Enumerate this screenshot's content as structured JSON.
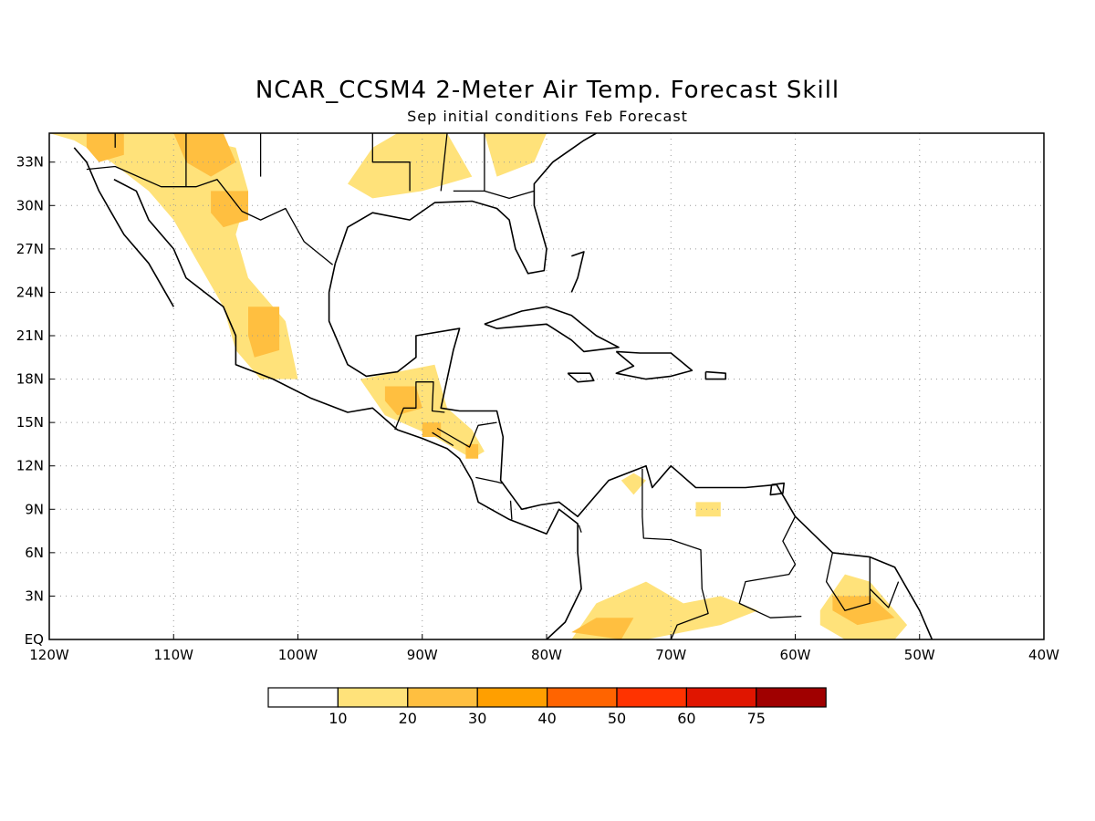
{
  "title": "NCAR_CCSM4 2-Meter Air Temp. Forecast Skill",
  "subtitle": "Sep initial conditions  Feb Forecast",
  "map": {
    "lon_range": [
      -120,
      -40
    ],
    "lat_range": [
      0,
      35
    ],
    "lon_ticks": [
      {
        "value": -120,
        "label": "120W"
      },
      {
        "value": -110,
        "label": "110W"
      },
      {
        "value": -100,
        "label": "100W"
      },
      {
        "value": -90,
        "label": "90W"
      },
      {
        "value": -80,
        "label": "80W"
      },
      {
        "value": -70,
        "label": "70W"
      },
      {
        "value": -60,
        "label": "60W"
      },
      {
        "value": -50,
        "label": "50W"
      },
      {
        "value": -40,
        "label": "40W"
      }
    ],
    "lat_ticks": [
      {
        "value": 0,
        "label": "EQ"
      },
      {
        "value": 3,
        "label": "3N"
      },
      {
        "value": 6,
        "label": "6N"
      },
      {
        "value": 9,
        "label": "9N"
      },
      {
        "value": 12,
        "label": "12N"
      },
      {
        "value": 15,
        "label": "15N"
      },
      {
        "value": 18,
        "label": "18N"
      },
      {
        "value": 21,
        "label": "21N"
      },
      {
        "value": 24,
        "label": "24N"
      },
      {
        "value": 27,
        "label": "27N"
      },
      {
        "value": 30,
        "label": "30N"
      },
      {
        "value": 33,
        "label": "33N"
      }
    ],
    "grid": true
  },
  "colorbar": {
    "colors": [
      "#ffffff",
      "#ffe27a",
      "#ffbf40",
      "#ff9f00",
      "#ff6400",
      "#ff3300",
      "#e01500",
      "#a00000"
    ],
    "labels": [
      "10",
      "20",
      "30",
      "40",
      "50",
      "60",
      "75"
    ]
  },
  "skill_regions": [
    {
      "level": 1,
      "pts": [
        [
          -120,
          35
        ],
        [
          -116,
          35
        ],
        [
          -110,
          35
        ],
        [
          -105,
          34
        ],
        [
          -104,
          31
        ],
        [
          -105,
          28
        ],
        [
          -104,
          25
        ],
        [
          -101,
          22
        ],
        [
          -100,
          18
        ],
        [
          -103,
          18
        ],
        [
          -105,
          20
        ],
        [
          -106,
          23
        ],
        [
          -108,
          26
        ],
        [
          -110,
          29
        ],
        [
          -112,
          31
        ],
        [
          -115,
          33
        ],
        [
          -118,
          34.5
        ]
      ]
    },
    {
      "level": 2,
      "pts": [
        [
          -117,
          35
        ],
        [
          -114,
          35
        ],
        [
          -114,
          33.5
        ],
        [
          -116,
          33
        ],
        [
          -117,
          34
        ]
      ]
    },
    {
      "level": 2,
      "pts": [
        [
          -110,
          35
        ],
        [
          -106,
          35
        ],
        [
          -105,
          33
        ],
        [
          -107,
          32
        ],
        [
          -109,
          33
        ]
      ]
    },
    {
      "level": 2,
      "pts": [
        [
          -107,
          31
        ],
        [
          -104,
          31
        ],
        [
          -104,
          29
        ],
        [
          -106,
          28.5
        ],
        [
          -107,
          29.5
        ]
      ]
    },
    {
      "level": 2,
      "pts": [
        [
          -104,
          23
        ],
        [
          -101.5,
          23
        ],
        [
          -101.5,
          20
        ],
        [
          -103.5,
          19.5
        ],
        [
          -104,
          21
        ]
      ]
    },
    {
      "level": 1,
      "pts": [
        [
          -94,
          34
        ],
        [
          -92,
          35
        ],
        [
          -88,
          35
        ],
        [
          -86,
          32
        ],
        [
          -90,
          31
        ],
        [
          -94,
          30.5
        ],
        [
          -96,
          31.5
        ]
      ]
    },
    {
      "level": 1,
      "pts": [
        [
          -85,
          35
        ],
        [
          -80,
          35
        ],
        [
          -81,
          33
        ],
        [
          -84,
          32
        ]
      ]
    },
    {
      "level": 1,
      "pts": [
        [
          -95,
          18
        ],
        [
          -89,
          19
        ],
        [
          -88,
          16
        ],
        [
          -86,
          14.5
        ],
        [
          -85,
          13
        ],
        [
          -86,
          12.5
        ],
        [
          -89,
          14
        ],
        [
          -93,
          15.5
        ]
      ]
    },
    {
      "level": 2,
      "pts": [
        [
          -93,
          17.5
        ],
        [
          -90.5,
          17.5
        ],
        [
          -90,
          16
        ],
        [
          -92,
          15.5
        ],
        [
          -93,
          16.5
        ]
      ]
    },
    {
      "level": 2,
      "pts": [
        [
          -90,
          15
        ],
        [
          -88.5,
          15
        ],
        [
          -88.5,
          14
        ],
        [
          -90,
          14
        ]
      ]
    },
    {
      "level": 2,
      "pts": [
        [
          -86.5,
          13.5
        ],
        [
          -85.5,
          13.5
        ],
        [
          -85.5,
          12.5
        ],
        [
          -86.5,
          12.5
        ]
      ]
    },
    {
      "level": 1,
      "pts": [
        [
          -78,
          0
        ],
        [
          -76,
          2.5
        ],
        [
          -72,
          4
        ],
        [
          -69,
          2.5
        ],
        [
          -66,
          3
        ],
        [
          -63,
          2
        ],
        [
          -66,
          1
        ],
        [
          -72,
          0
        ]
      ]
    },
    {
      "level": 2,
      "pts": [
        [
          -78,
          0.5
        ],
        [
          -76,
          1.5
        ],
        [
          -73,
          1.5
        ],
        [
          -74,
          0
        ]
      ]
    },
    {
      "level": 1,
      "pts": [
        [
          -68,
          9.5
        ],
        [
          -66,
          9.5
        ],
        [
          -66,
          8.5
        ],
        [
          -68,
          8.5
        ]
      ]
    },
    {
      "level": 1,
      "pts": [
        [
          -74,
          11
        ],
        [
          -73,
          11.5
        ],
        [
          -72,
          11
        ],
        [
          -73,
          10
        ]
      ]
    },
    {
      "level": 1,
      "pts": [
        [
          -58,
          2
        ],
        [
          -56,
          4.5
        ],
        [
          -54,
          4
        ],
        [
          -52,
          2
        ],
        [
          -51,
          1
        ],
        [
          -52,
          0
        ],
        [
          -56,
          0
        ],
        [
          -58,
          1
        ]
      ]
    },
    {
      "level": 2,
      "pts": [
        [
          -57,
          3
        ],
        [
          -54,
          3
        ],
        [
          -52,
          1.5
        ],
        [
          -55,
          1
        ],
        [
          -57,
          2
        ]
      ]
    }
  ],
  "coastlines": [
    [
      [
        -118,
        34
      ],
      [
        -117,
        33
      ],
      [
        -116,
        31
      ],
      [
        -115,
        29.5
      ],
      [
        -114,
        28
      ],
      [
        -112,
        26
      ],
      [
        -110,
        23
      ]
    ],
    [
      [
        -114.8,
        31.8
      ],
      [
        -113,
        31
      ],
      [
        -112,
        29
      ],
      [
        -110,
        27
      ],
      [
        -109,
        25
      ],
      [
        -106,
        23
      ],
      [
        -105,
        21
      ],
      [
        -105,
        19
      ],
      [
        -102,
        18
      ],
      [
        -99,
        16.7
      ],
      [
        -96,
        15.7
      ],
      [
        -94,
        16
      ],
      [
        -92,
        14.5
      ],
      [
        -90,
        13.9
      ],
      [
        -88,
        13.2
      ],
      [
        -87,
        12.5
      ],
      [
        -86,
        11
      ],
      [
        -85.5,
        9.5
      ],
      [
        -83,
        8.3
      ],
      [
        -80,
        7.3
      ],
      [
        -79,
        9
      ],
      [
        -77.5,
        8
      ],
      [
        -77.5,
        6
      ],
      [
        -77.2,
        3.5
      ],
      [
        -78.5,
        1.2
      ],
      [
        -80,
        0
      ]
    ],
    [
      [
        -97,
        26
      ],
      [
        -97.5,
        24
      ],
      [
        -97.5,
        22
      ],
      [
        -96,
        19
      ],
      [
        -94.5,
        18.2
      ],
      [
        -92,
        18.5
      ],
      [
        -90.5,
        19.5
      ],
      [
        -90.5,
        21
      ],
      [
        -87,
        21.5
      ],
      [
        -87.5,
        20
      ],
      [
        -88,
        18
      ],
      [
        -88.5,
        16
      ],
      [
        -87,
        15.8
      ],
      [
        -84,
        15.8
      ],
      [
        -83.5,
        14
      ],
      [
        -83.7,
        11
      ],
      [
        -82,
        9
      ],
      [
        -80.5,
        9.3
      ],
      [
        -79,
        9.5
      ],
      [
        -77.5,
        8.5
      ],
      [
        -76,
        10
      ],
      [
        -75,
        11
      ],
      [
        -72,
        12
      ],
      [
        -71.5,
        10.5
      ],
      [
        -70,
        12
      ],
      [
        -68,
        10.5
      ],
      [
        -64,
        10.5
      ],
      [
        -61.5,
        10.7
      ],
      [
        -60,
        8.5
      ],
      [
        -57,
        6
      ],
      [
        -54,
        5.7
      ],
      [
        -52,
        5
      ],
      [
        -50,
        2
      ],
      [
        -49,
        0
      ]
    ],
    [
      [
        -97,
        26
      ],
      [
        -96,
        28.5
      ],
      [
        -94,
        29.5
      ],
      [
        -91,
        29
      ],
      [
        -89,
        30.2
      ],
      [
        -86,
        30.3
      ],
      [
        -84,
        29.8
      ],
      [
        -83,
        29
      ],
      [
        -82.5,
        27
      ],
      [
        -81.5,
        25.3
      ],
      [
        -80.2,
        25.5
      ],
      [
        -80,
        27
      ],
      [
        -81,
        30
      ],
      [
        -81,
        31.5
      ],
      [
        -79.5,
        33
      ],
      [
        -77,
        34.5
      ],
      [
        -76,
        35
      ]
    ],
    [
      [
        -85,
        21.8
      ],
      [
        -82,
        22.7
      ],
      [
        -80,
        23
      ],
      [
        -78,
        22.4
      ],
      [
        -76,
        21
      ],
      [
        -74.2,
        20.2
      ],
      [
        -77,
        19.9
      ],
      [
        -78,
        20.7
      ],
      [
        -80,
        21.8
      ],
      [
        -84,
        21.5
      ],
      [
        -85,
        21.8
      ]
    ],
    [
      [
        -74.4,
        19.9
      ],
      [
        -72.5,
        19.8
      ],
      [
        -70,
        19.8
      ],
      [
        -68.3,
        18.6
      ],
      [
        -70,
        18.2
      ],
      [
        -72,
        18
      ],
      [
        -74.4,
        18.4
      ],
      [
        -73,
        18.9
      ],
      [
        -74.4,
        19.9
      ]
    ],
    [
      [
        -78.3,
        18.4
      ],
      [
        -76.5,
        18.4
      ],
      [
        -76.2,
        17.9
      ],
      [
        -77.5,
        17.8
      ],
      [
        -78.3,
        18.4
      ]
    ],
    [
      [
        -67.2,
        18.5
      ],
      [
        -65.6,
        18.4
      ],
      [
        -65.6,
        18
      ],
      [
        -67.2,
        18
      ],
      [
        -67.2,
        18.5
      ]
    ],
    [
      [
        -78,
        26.5
      ],
      [
        -77,
        26.8
      ],
      [
        -77.5,
        25
      ],
      [
        -78,
        24
      ]
    ],
    [
      [
        -61.9,
        10.7
      ],
      [
        -60.9,
        10.8
      ],
      [
        -61,
        10.1
      ],
      [
        -62,
        10
      ],
      [
        -61.9,
        10.7
      ]
    ]
  ],
  "borders": [
    [
      [
        -117,
        32.5
      ],
      [
        -114.7,
        32.7
      ],
      [
        -111,
        31.3
      ],
      [
        -108.2,
        31.3
      ],
      [
        -106.5,
        31.8
      ],
      [
        -104.5,
        29.6
      ],
      [
        -103,
        29
      ],
      [
        -101,
        29.8
      ],
      [
        -99.5,
        27.5
      ],
      [
        -97.2,
        25.9
      ]
    ],
    [
      [
        -92.2,
        14.5
      ],
      [
        -91.5,
        16
      ],
      [
        -90.5,
        16
      ],
      [
        -90.5,
        17.8
      ],
      [
        -89.1,
        17.8
      ],
      [
        -89.2,
        15.8
      ],
      [
        -88.2,
        15.7
      ]
    ],
    [
      [
        -89.2,
        14.3
      ],
      [
        -87.5,
        13.4
      ]
    ],
    [
      [
        -88.8,
        14.6
      ],
      [
        -86.2,
        13.3
      ],
      [
        -85.5,
        14.8
      ],
      [
        -84,
        15
      ]
    ],
    [
      [
        -85.7,
        11.2
      ],
      [
        -84,
        10.9
      ],
      [
        -83.6,
        10.8
      ]
    ],
    [
      [
        -82.9,
        9.6
      ],
      [
        -82.8,
        8.3
      ]
    ],
    [
      [
        -77.4,
        7.9
      ],
      [
        -77.2,
        7.4
      ]
    ],
    [
      [
        -72.3,
        11.8
      ],
      [
        -72.3,
        8.5
      ],
      [
        -72.2,
        7
      ],
      [
        -70,
        6.9
      ],
      [
        -67.6,
        6.2
      ],
      [
        -67.5,
        3.5
      ],
      [
        -67,
        1.8
      ],
      [
        -69.5,
        1
      ],
      [
        -70,
        0
      ]
    ],
    [
      [
        -60,
        8.5
      ],
      [
        -61,
        6.8
      ],
      [
        -60,
        5.2
      ],
      [
        -60.5,
        4.5
      ],
      [
        -64,
        4
      ],
      [
        -64.5,
        2.5
      ],
      [
        -62,
        1.5
      ],
      [
        -59.5,
        1.6
      ]
    ],
    [
      [
        -57,
        6
      ],
      [
        -57.5,
        4
      ],
      [
        -56,
        2
      ],
      [
        -54,
        2.5
      ],
      [
        -54,
        5.7
      ]
    ],
    [
      [
        -54,
        3.5
      ],
      [
        -52.5,
        2.2
      ],
      [
        -51.7,
        4
      ]
    ],
    [
      [
        -114.7,
        35
      ],
      [
        -114.7,
        34
      ]
    ],
    [
      [
        -109,
        35
      ],
      [
        -109,
        31.3
      ]
    ],
    [
      [
        -103,
        35
      ],
      [
        -103,
        32
      ]
    ],
    [
      [
        -94,
        35
      ],
      [
        -94,
        33
      ],
      [
        -91,
        33
      ],
      [
        -91,
        31
      ]
    ],
    [
      [
        -88,
        35
      ],
      [
        -88.5,
        31
      ]
    ],
    [
      [
        -85,
        35
      ],
      [
        -85,
        31
      ],
      [
        -87.5,
        31
      ]
    ],
    [
      [
        -85,
        31
      ],
      [
        -83,
        30.5
      ],
      [
        -81,
        31
      ]
    ]
  ]
}
